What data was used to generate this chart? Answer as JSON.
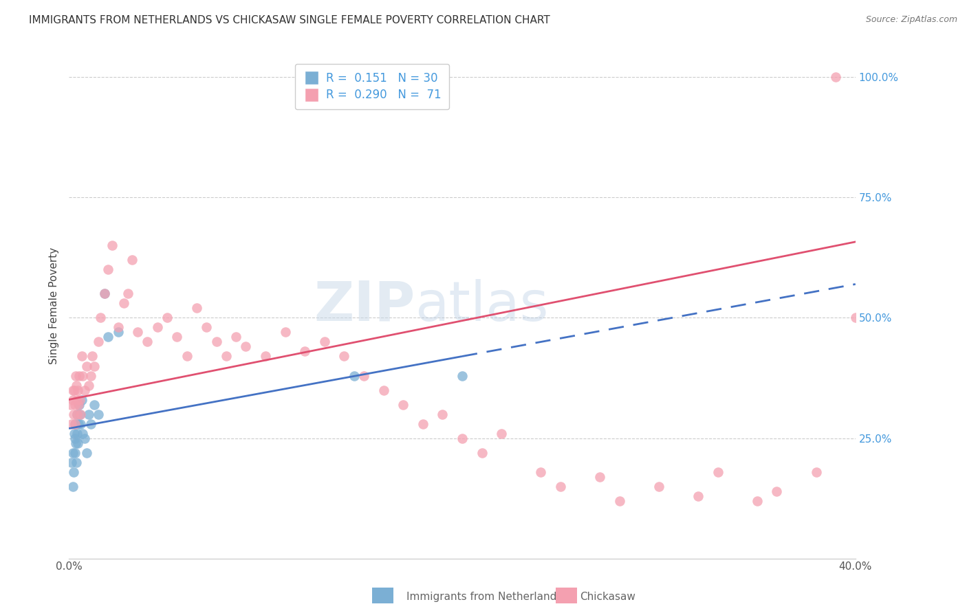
{
  "title": "IMMIGRANTS FROM NETHERLANDS VS CHICKASAW SINGLE FEMALE POVERTY CORRELATION CHART",
  "source": "Source: ZipAtlas.com",
  "ylabel": "Single Female Poverty",
  "xlim": [
    0.0,
    40.0
  ],
  "ylim": [
    0.0,
    105.0
  ],
  "right_yticks": [
    25.0,
    50.0,
    75.0,
    100.0
  ],
  "right_ytick_labels": [
    "25.0%",
    "50.0%",
    "75.0%",
    "100.0%"
  ],
  "blue_color": "#7bafd4",
  "pink_color": "#f4a0b0",
  "blue_line_color": "#4472c4",
  "pink_line_color": "#e05070",
  "watermark_zip": "ZIP",
  "watermark_atlas": "atlas",
  "legend_r1": "R =  0.151",
  "legend_n1": "N = 30",
  "legend_r2": "R =  0.290",
  "legend_n2": "N =  71",
  "blue_x": [
    0.15,
    0.2,
    0.22,
    0.25,
    0.28,
    0.3,
    0.3,
    0.32,
    0.35,
    0.38,
    0.4,
    0.42,
    0.45,
    0.5,
    0.52,
    0.55,
    0.6,
    0.65,
    0.7,
    0.8,
    0.9,
    1.0,
    1.1,
    1.3,
    1.5,
    1.8,
    2.0,
    2.5,
    14.5,
    20.0
  ],
  "blue_y": [
    20.0,
    22.0,
    15.0,
    18.0,
    26.0,
    25.0,
    22.0,
    28.0,
    24.0,
    20.0,
    30.0,
    26.0,
    24.0,
    28.0,
    32.0,
    30.0,
    28.0,
    33.0,
    26.0,
    25.0,
    22.0,
    30.0,
    28.0,
    32.0,
    30.0,
    55.0,
    46.0,
    47.0,
    38.0,
    38.0
  ],
  "pink_x": [
    0.1,
    0.15,
    0.2,
    0.22,
    0.25,
    0.28,
    0.3,
    0.32,
    0.35,
    0.38,
    0.4,
    0.42,
    0.45,
    0.5,
    0.52,
    0.55,
    0.6,
    0.65,
    0.7,
    0.8,
    0.9,
    1.0,
    1.1,
    1.2,
    1.3,
    1.5,
    1.6,
    1.8,
    2.0,
    2.2,
    2.5,
    2.8,
    3.0,
    3.2,
    3.5,
    4.0,
    4.5,
    5.0,
    5.5,
    6.0,
    6.5,
    7.0,
    7.5,
    8.0,
    8.5,
    9.0,
    10.0,
    11.0,
    12.0,
    13.0,
    14.0,
    15.0,
    16.0,
    17.0,
    18.0,
    19.0,
    20.0,
    21.0,
    22.0,
    24.0,
    25.0,
    27.0,
    28.0,
    30.0,
    32.0,
    33.0,
    35.0,
    36.0,
    38.0,
    39.0,
    40.0
  ],
  "pink_y": [
    32.0,
    28.0,
    35.0,
    33.0,
    30.0,
    35.0,
    32.0,
    28.0,
    38.0,
    36.0,
    33.0,
    30.0,
    35.0,
    32.0,
    38.0,
    33.0,
    30.0,
    42.0,
    38.0,
    35.0,
    40.0,
    36.0,
    38.0,
    42.0,
    40.0,
    45.0,
    50.0,
    55.0,
    60.0,
    65.0,
    48.0,
    53.0,
    55.0,
    62.0,
    47.0,
    45.0,
    48.0,
    50.0,
    46.0,
    42.0,
    52.0,
    48.0,
    45.0,
    42.0,
    46.0,
    44.0,
    42.0,
    47.0,
    43.0,
    45.0,
    42.0,
    38.0,
    35.0,
    32.0,
    28.0,
    30.0,
    25.0,
    22.0,
    26.0,
    18.0,
    15.0,
    17.0,
    12.0,
    15.0,
    13.0,
    18.0,
    12.0,
    14.0,
    18.0,
    100.0,
    50.0
  ]
}
